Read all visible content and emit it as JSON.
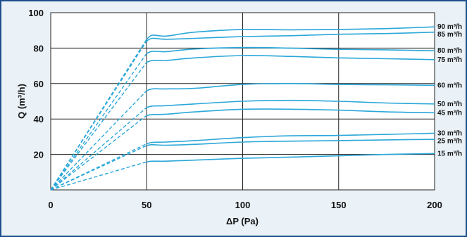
{
  "chart_data": {
    "type": "line",
    "xlabel": "ΔP (Pa)",
    "ylabel": "Q (m³/h)",
    "xlim": [
      0,
      200
    ],
    "ylim": [
      0,
      100
    ],
    "x_ticks": [
      "0",
      "50",
      "100",
      "150",
      "200"
    ],
    "y_ticks": [
      "20",
      "40",
      "60",
      "80",
      "100"
    ],
    "grid": true,
    "line_color": "#2aa7d9",
    "series": [
      {
        "name": "90 m³/h",
        "ramp_dashed": true,
        "points": [
          [
            0,
            0
          ],
          [
            50,
            85
          ],
          [
            53,
            87.3
          ],
          [
            60,
            86.8
          ],
          [
            75,
            89
          ],
          [
            100,
            90.5
          ],
          [
            125,
            90.3
          ],
          [
            150,
            90.5
          ],
          [
            175,
            91
          ],
          [
            200,
            92
          ]
        ]
      },
      {
        "name": "85 m³/h",
        "ramp_dashed": true,
        "points": [
          [
            0,
            0
          ],
          [
            50,
            84
          ],
          [
            53,
            85.5
          ],
          [
            60,
            85
          ],
          [
            75,
            85.5
          ],
          [
            100,
            86.5
          ],
          [
            125,
            87
          ],
          [
            150,
            87.8
          ],
          [
            175,
            88.2
          ],
          [
            200,
            89
          ]
        ]
      },
      {
        "name": "80 m³/h",
        "ramp_dashed": true,
        "points": [
          [
            0,
            0
          ],
          [
            50,
            77
          ],
          [
            53,
            78.2
          ],
          [
            60,
            78
          ],
          [
            75,
            79.5
          ],
          [
            100,
            80.3
          ],
          [
            125,
            80
          ],
          [
            150,
            79.3
          ],
          [
            175,
            79
          ],
          [
            200,
            78.5
          ]
        ]
      },
      {
        "name": "75 m³/h",
        "ramp_dashed": true,
        "points": [
          [
            0,
            0
          ],
          [
            50,
            72
          ],
          [
            53,
            73
          ],
          [
            60,
            73
          ],
          [
            75,
            74.5
          ],
          [
            100,
            75.8
          ],
          [
            125,
            75.3
          ],
          [
            150,
            74.5
          ],
          [
            175,
            74
          ],
          [
            200,
            73.5
          ]
        ]
      },
      {
        "name": "60 m³/h",
        "ramp_dashed": true,
        "points": [
          [
            0,
            0
          ],
          [
            50,
            56
          ],
          [
            53,
            57
          ],
          [
            60,
            57
          ],
          [
            75,
            57.3
          ],
          [
            100,
            59.5
          ],
          [
            125,
            60
          ],
          [
            150,
            59.5
          ],
          [
            175,
            59.3
          ],
          [
            200,
            59
          ]
        ]
      },
      {
        "name": "50 m³/h",
        "ramp_dashed": true,
        "points": [
          [
            0,
            0
          ],
          [
            50,
            46.5
          ],
          [
            53,
            47.3
          ],
          [
            60,
            47.5
          ],
          [
            75,
            48.5
          ],
          [
            100,
            50
          ],
          [
            125,
            50.5
          ],
          [
            150,
            50
          ],
          [
            175,
            49
          ],
          [
            200,
            48.5
          ]
        ]
      },
      {
        "name": "45 m³/h",
        "ramp_dashed": true,
        "points": [
          [
            0,
            0
          ],
          [
            50,
            42
          ],
          [
            53,
            42.5
          ],
          [
            60,
            42.7
          ],
          [
            75,
            44
          ],
          [
            100,
            45.5
          ],
          [
            125,
            45.5
          ],
          [
            150,
            45
          ],
          [
            175,
            44
          ],
          [
            200,
            43.5
          ]
        ]
      },
      {
        "name": "30 m³/h",
        "ramp_dashed": true,
        "points": [
          [
            0,
            0
          ],
          [
            50,
            26
          ],
          [
            53,
            26.8
          ],
          [
            60,
            27
          ],
          [
            75,
            27.8
          ],
          [
            100,
            29.5
          ],
          [
            125,
            30.5
          ],
          [
            150,
            30.7
          ],
          [
            175,
            31.3
          ],
          [
            200,
            32
          ]
        ]
      },
      {
        "name": "25 m³/h",
        "ramp_dashed": true,
        "points": [
          [
            0,
            0
          ],
          [
            50,
            25
          ],
          [
            53,
            25.5
          ],
          [
            60,
            25.2
          ],
          [
            75,
            25.7
          ],
          [
            100,
            27
          ],
          [
            125,
            27.5
          ],
          [
            150,
            27.8
          ],
          [
            175,
            28.2
          ],
          [
            200,
            28.5
          ]
        ]
      },
      {
        "name": "15 m³/h",
        "ramp_dashed": true,
        "points": [
          [
            0,
            0
          ],
          [
            50,
            15.8
          ],
          [
            53,
            16.2
          ],
          [
            60,
            16.2
          ],
          [
            75,
            16.8
          ],
          [
            100,
            17.8
          ],
          [
            125,
            18.5
          ],
          [
            150,
            19.2
          ],
          [
            175,
            20
          ],
          [
            200,
            20.5
          ]
        ]
      }
    ]
  }
}
